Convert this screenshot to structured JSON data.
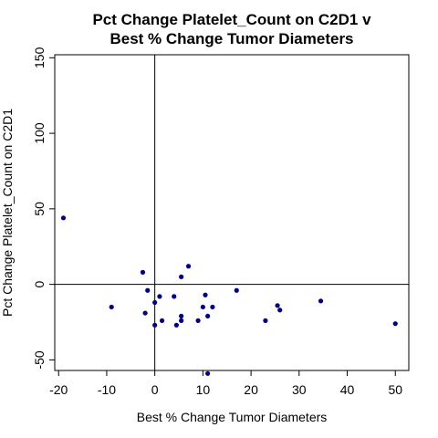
{
  "chart_data": {
    "type": "scatter",
    "title": [
      "Pct Change Platelet_Count on C2D1 v",
      "Best % Change Tumor Diameters"
    ],
    "xlabel": "Best % Change Tumor Diameters",
    "ylabel": "Pct Change Platelet_Count on C2D1",
    "xlim": [
      -20.8,
      52.8
    ],
    "ylim": [
      -57,
      152
    ],
    "x_ticks": [
      -20,
      -10,
      0,
      10,
      20,
      30,
      40,
      50
    ],
    "y_ticks": [
      -50,
      0,
      50,
      100,
      150
    ],
    "reference_lines": {
      "x": 0,
      "y": 0
    },
    "point_color": "#000080",
    "grid": false,
    "points": [
      {
        "x": -19,
        "y": 44
      },
      {
        "x": -9,
        "y": -15
      },
      {
        "x": -2.5,
        "y": 8
      },
      {
        "x": -2,
        "y": -19
      },
      {
        "x": -1.5,
        "y": -4
      },
      {
        "x": 0,
        "y": -12
      },
      {
        "x": 0,
        "y": -27
      },
      {
        "x": 1,
        "y": -8
      },
      {
        "x": 1.5,
        "y": -24
      },
      {
        "x": 4,
        "y": -8
      },
      {
        "x": 4.5,
        "y": -27
      },
      {
        "x": 5.5,
        "y": 5
      },
      {
        "x": 5.5,
        "y": -21
      },
      {
        "x": 5.5,
        "y": -24
      },
      {
        "x": 7,
        "y": 12
      },
      {
        "x": 9,
        "y": -24
      },
      {
        "x": 10,
        "y": -15
      },
      {
        "x": 10.5,
        "y": -7
      },
      {
        "x": 11,
        "y": -21
      },
      {
        "x": 11,
        "y": -59
      },
      {
        "x": 12,
        "y": -15
      },
      {
        "x": 17,
        "y": -4
      },
      {
        "x": 23,
        "y": -24
      },
      {
        "x": 25.5,
        "y": -14
      },
      {
        "x": 26,
        "y": -17
      },
      {
        "x": 34.5,
        "y": -11
      },
      {
        "x": 50,
        "y": -26
      }
    ]
  }
}
